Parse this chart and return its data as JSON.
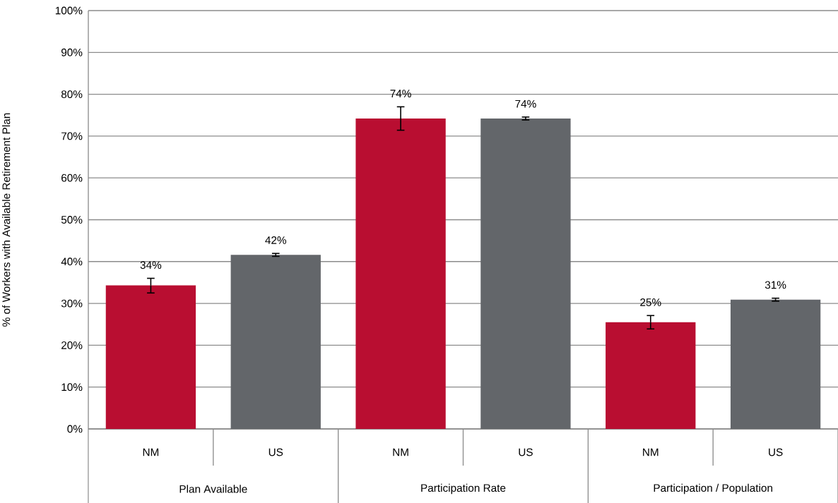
{
  "chart_data": {
    "type": "bar",
    "ylabel": "% of Workers with Available Retirement Plan",
    "categories": [
      "NM",
      "US",
      "NM",
      "US",
      "NM",
      "US"
    ],
    "values": [
      34.3,
      41.6,
      74.2,
      74.2,
      25.5,
      30.9
    ],
    "colors": [
      "#b90e31",
      "#63666a",
      "#b90e31",
      "#63666a",
      "#b90e31",
      "#63666a"
    ],
    "errors": [
      [
        32.5,
        36.0
      ],
      [
        41.25,
        41.95
      ],
      [
        71.4,
        77.0
      ],
      [
        73.85,
        74.55
      ],
      [
        23.9,
        27.1
      ],
      [
        30.55,
        31.25
      ]
    ],
    "value_labels": [
      "34%",
      "42%",
      "74%",
      "74%",
      "25%",
      "31%"
    ],
    "annotations": [
      "Plan Available",
      "Participation Rate",
      "Participation / Population"
    ],
    "ylim": [
      0,
      100
    ],
    "yticks": [
      {
        "value": 0,
        "label": "0%"
      },
      {
        "value": 10,
        "label": "10%"
      },
      {
        "value": 20,
        "label": "20%"
      },
      {
        "value": 30,
        "label": "30%"
      },
      {
        "value": 40,
        "label": "40%"
      },
      {
        "value": 50,
        "label": "50%"
      },
      {
        "value": 60,
        "label": "60%"
      },
      {
        "value": 70,
        "label": "70%"
      },
      {
        "value": 80,
        "label": "80%"
      },
      {
        "value": 90,
        "label": "90%"
      },
      {
        "value": 100,
        "label": "100%"
      }
    ],
    "grid": "y"
  }
}
